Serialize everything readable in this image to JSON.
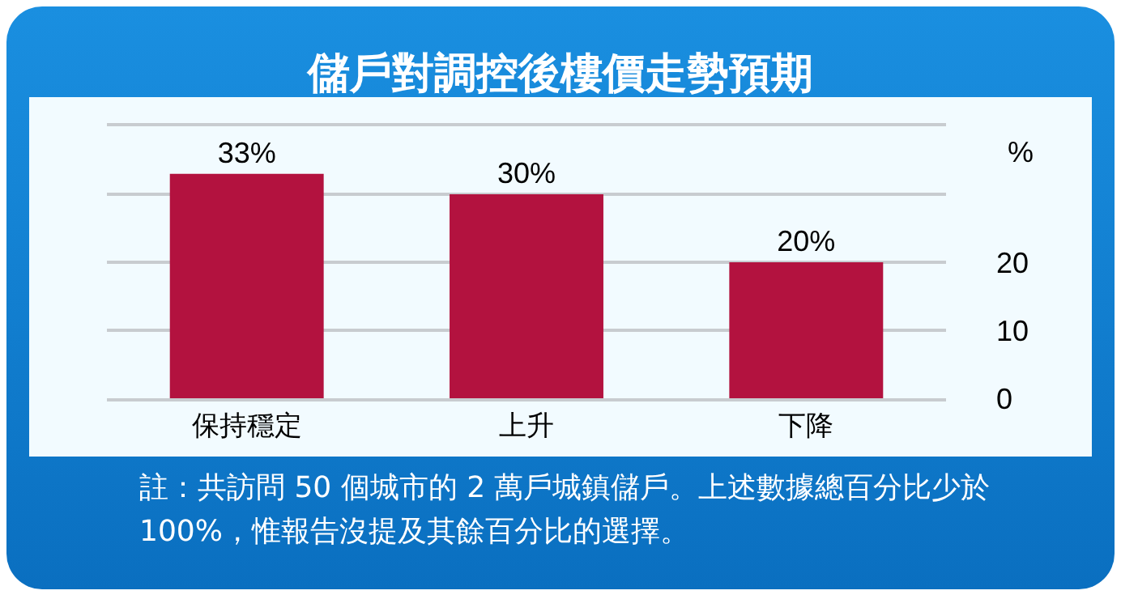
{
  "chart_data": {
    "type": "bar",
    "title": "儲戶對調控後樓價走勢預期",
    "categories": [
      "保持穩定",
      "上升",
      "下降"
    ],
    "values": [
      33,
      30,
      20
    ],
    "color": "#b3123f",
    "value_labels": [
      "33%",
      "30%",
      "20%"
    ],
    "ylabel": "%",
    "ylim": [
      0,
      40
    ],
    "yticks": [
      0,
      10,
      20,
      {
        "value": 30,
        "label": null
      }
    ],
    "grid": "y",
    "annotations": [
      "註：共訪問 50 個城市的 2 萬戶城鎮儲戶。上述數據總百分比少於 100%，惟報告沒提及其餘百分比的選擇。"
    ]
  }
}
